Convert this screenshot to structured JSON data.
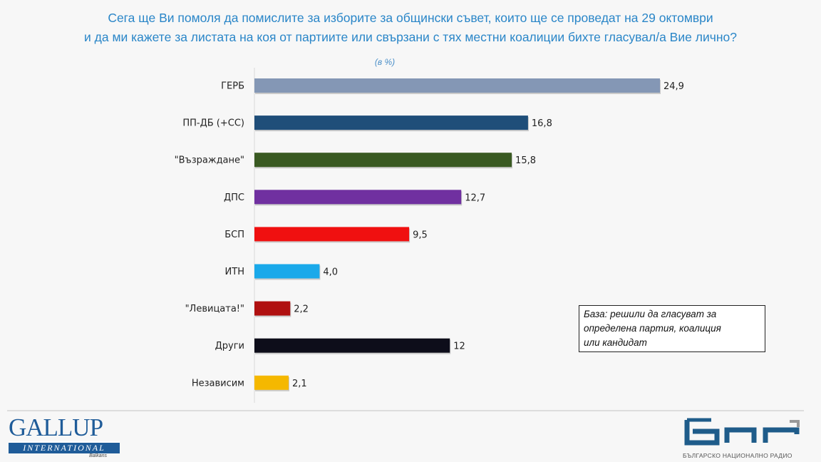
{
  "title_lines": [
    "Сега ще Ви помоля да помислите за изборите за общински съвет, които ще се проведат на 29 октомври",
    "и да ми кажете за листата на коя от партиите или свързани с тях местни коалиции бихте гласувал/а Вие лично?"
  ],
  "unit_label": "(в %)",
  "base_note_lines": [
    "База: решили да гласуват за",
    "определена партия, коалиция",
    "или кандидат"
  ],
  "chart_data": {
    "type": "bar",
    "orientation": "horizontal",
    "categories": [
      "ГЕРБ",
      "ПП-ДБ (+СС)",
      "\"Възраждане\"",
      "ДПС",
      "БСП",
      "ИТН",
      "\"Левицата!\"",
      "Други",
      "Независим"
    ],
    "values": [
      24.9,
      16.8,
      15.8,
      12.7,
      9.5,
      4.0,
      2.2,
      12,
      2.1
    ],
    "value_labels": [
      "24,9",
      "16,8",
      "15,8",
      "12,7",
      "9,5",
      "4,0",
      "2,2",
      "12",
      "2,1"
    ],
    "colors": [
      "#8497b5",
      "#1f4e79",
      "#3a5a22",
      "#7030a0",
      "#f01010",
      "#1aa9ea",
      "#b01010",
      "#0d0d1a",
      "#f5b800"
    ],
    "xlim": [
      0,
      25
    ],
    "grid": false
  },
  "logos": {
    "gallup": {
      "name": "GALLUP",
      "sub": "INTERNATIONAL",
      "region": "Balkans"
    },
    "bnr": {
      "mark": "бнр",
      "sub": "БЪЛГАРСКО НАЦИОНАЛНО РАДИО"
    }
  }
}
